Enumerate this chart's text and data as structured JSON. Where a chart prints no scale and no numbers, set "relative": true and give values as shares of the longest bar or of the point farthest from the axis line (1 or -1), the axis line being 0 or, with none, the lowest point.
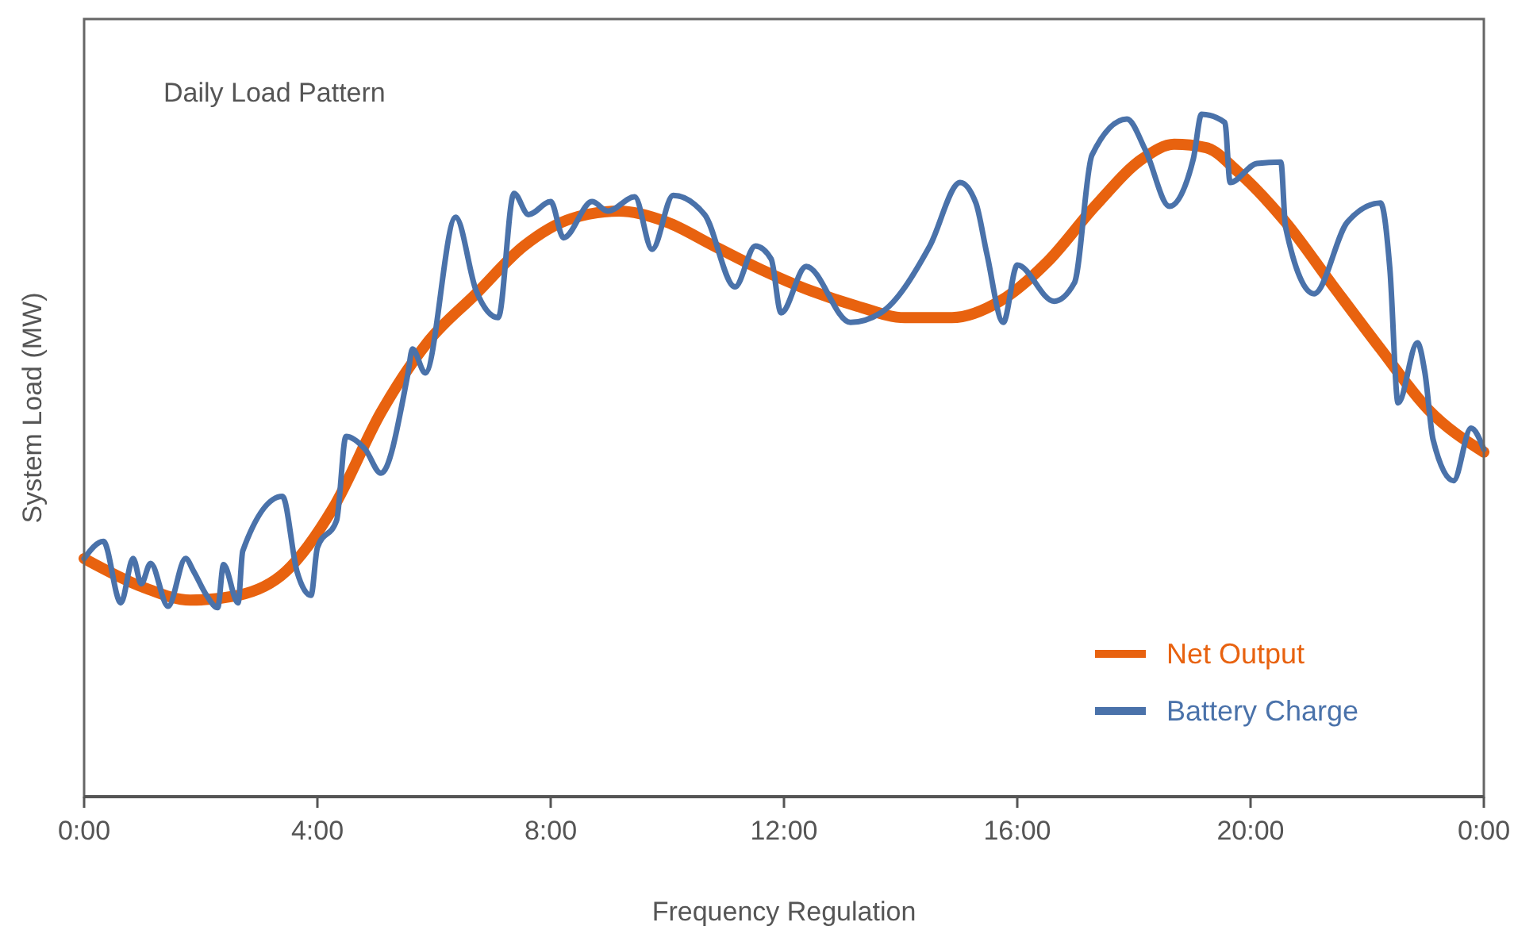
{
  "chart_data": {
    "type": "line",
    "title": "Daily Load Pattern",
    "xlabel": "Frequency Regulation",
    "ylabel": "System Load (MW)",
    "relative": true,
    "grid": false,
    "legend": "bottom right",
    "marker": "none",
    "line_style": "solid",
    "xlim": [
      0,
      24
    ],
    "xticks": [
      {
        "value": 0,
        "label": "0:00"
      },
      {
        "value": 4,
        "label": "4:00"
      },
      {
        "value": 8,
        "label": "8:00"
      },
      {
        "value": 12,
        "label": "12:00"
      },
      {
        "value": 16,
        "label": "16:00"
      },
      {
        "value": 20,
        "label": "20:00"
      },
      {
        "value": 24,
        "label": "0:00"
      }
    ],
    "series": [
      {
        "name": "Net Output",
        "color": "#e8620f",
        "x": [
          0,
          1.01,
          1.82,
          2.64,
          3.46,
          4.27,
          5.09,
          5.9,
          6.72,
          7.54,
          8.35,
          9.17,
          9.99,
          10.8,
          11.62,
          12.44,
          13.25,
          14.07,
          14.88,
          15.7,
          16.52,
          17.33,
          18.15,
          18.69,
          19.24,
          19.78,
          20.6,
          21.41,
          22.23,
          23.05,
          24
        ],
        "values": [
          0.349,
          0.307,
          0.288,
          0.295,
          0.33,
          0.423,
          0.563,
          0.667,
          0.737,
          0.807,
          0.847,
          0.858,
          0.842,
          0.807,
          0.772,
          0.742,
          0.719,
          0.702,
          0.702,
          0.726,
          0.784,
          0.865,
          0.935,
          0.956,
          0.951,
          0.916,
          0.842,
          0.749,
          0.656,
          0.567,
          0.505
        ]
      },
      {
        "name": "Battery Charge",
        "color": "#4a72aa",
        "x": [
          0,
          0.33,
          0.63,
          0.84,
          0.98,
          1.14,
          1.44,
          1.74,
          1.88,
          2.1,
          2.29,
          2.39,
          2.64,
          2.72,
          3.4,
          3.65,
          3.89,
          4,
          4.33,
          4.49,
          4.82,
          5.09,
          5.55,
          5.63,
          5.85,
          6.37,
          6.72,
          7.1,
          7.37,
          7.62,
          8,
          8.22,
          8.71,
          8.98,
          9.44,
          9.74,
          10.1,
          10.64,
          11.16,
          11.51,
          11.78,
          11.95,
          12.38,
          13.14,
          13.66,
          14.5,
          15.02,
          15.29,
          15.48,
          15.76,
          16,
          16.63,
          16.98,
          17.28,
          17.88,
          18.2,
          18.61,
          19.02,
          19.16,
          19.56,
          19.65,
          20.11,
          20.52,
          20.6,
          21.09,
          21.66,
          22.23,
          22.39,
          22.53,
          22.86,
          22.99,
          23.13,
          23.48,
          23.78,
          24
        ],
        "values": [
          0.349,
          0.374,
          0.284,
          0.349,
          0.312,
          0.342,
          0.279,
          0.349,
          0.33,
          0.295,
          0.277,
          0.34,
          0.284,
          0.36,
          0.44,
          0.33,
          0.295,
          0.365,
          0.405,
          0.528,
          0.509,
          0.474,
          0.619,
          0.656,
          0.621,
          0.849,
          0.742,
          0.702,
          0.884,
          0.853,
          0.872,
          0.819,
          0.872,
          0.858,
          0.879,
          0.802,
          0.881,
          0.853,
          0.747,
          0.807,
          0.788,
          0.709,
          0.777,
          0.695,
          0.709,
          0.807,
          0.9,
          0.87,
          0.795,
          0.695,
          0.779,
          0.726,
          0.753,
          0.94,
          0.993,
          0.947,
          0.865,
          0.935,
          1,
          0.988,
          0.9,
          0.928,
          0.93,
          0.835,
          0.737,
          0.842,
          0.87,
          0.772,
          0.577,
          0.665,
          0.621,
          0.523,
          0.463,
          0.54,
          0.509
        ]
      }
    ]
  }
}
